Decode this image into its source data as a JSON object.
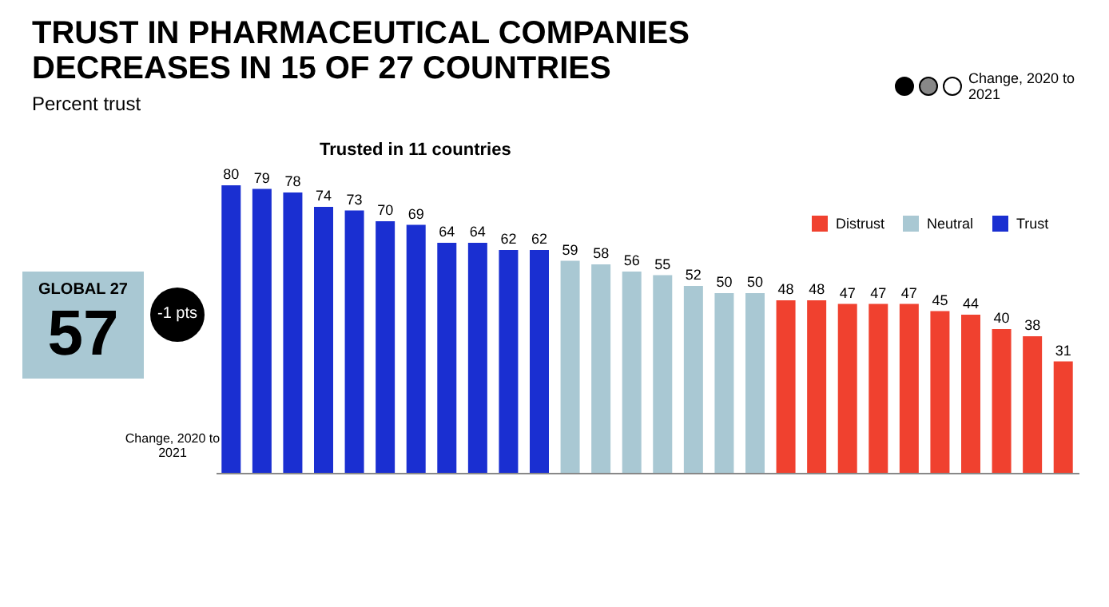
{
  "chart_data": {
    "type": "bar",
    "title": "TRUST IN PHARMACEUTICAL COMPANIES DECREASES IN 15 OF 27 COUNTRIES",
    "subtitle": "Percent trust",
    "categories": [
      null,
      null,
      null,
      null,
      null,
      null,
      null,
      null,
      null,
      null,
      null,
      null,
      null,
      null,
      null,
      null,
      null,
      null,
      null,
      null,
      null,
      null,
      null,
      null,
      null,
      null,
      null,
      null
    ],
    "series": [
      {
        "name": "Distrust",
        "color": "#f0412f",
        "values": [
          null,
          null,
          null,
          null,
          null,
          null,
          null,
          null,
          null,
          null,
          null,
          null,
          null,
          null,
          null,
          null,
          null,
          null,
          48,
          48,
          47,
          47,
          47,
          45,
          44,
          40,
          38,
          31
        ]
      },
      {
        "name": "Neutral",
        "color": "#a9c8d3",
        "values": [
          null,
          null,
          null,
          null,
          null,
          null,
          null,
          null,
          null,
          null,
          null,
          59,
          58,
          56,
          55,
          52,
          50,
          50,
          null,
          null,
          null,
          null,
          null,
          null,
          null,
          null,
          null,
          null
        ]
      },
      {
        "name": "Trust",
        "color": "#1a2fd1",
        "values": [
          80,
          79,
          78,
          74,
          73,
          70,
          69,
          64,
          64,
          62,
          62,
          null,
          null,
          null,
          null,
          null,
          null,
          null,
          null,
          null,
          null,
          null,
          null,
          null,
          null,
          null,
          null,
          null
        ]
      }
    ],
    "stacked": true,
    "data_labels": true,
    "legend": "top right",
    "annotations": [
      "Trusted in 11 countries",
      "GLOBAL 27",
      "57",
      "-1 pts",
      "Change, 2020 to 2021",
      "Change, 2020 to 2021"
    ]
  }
}
